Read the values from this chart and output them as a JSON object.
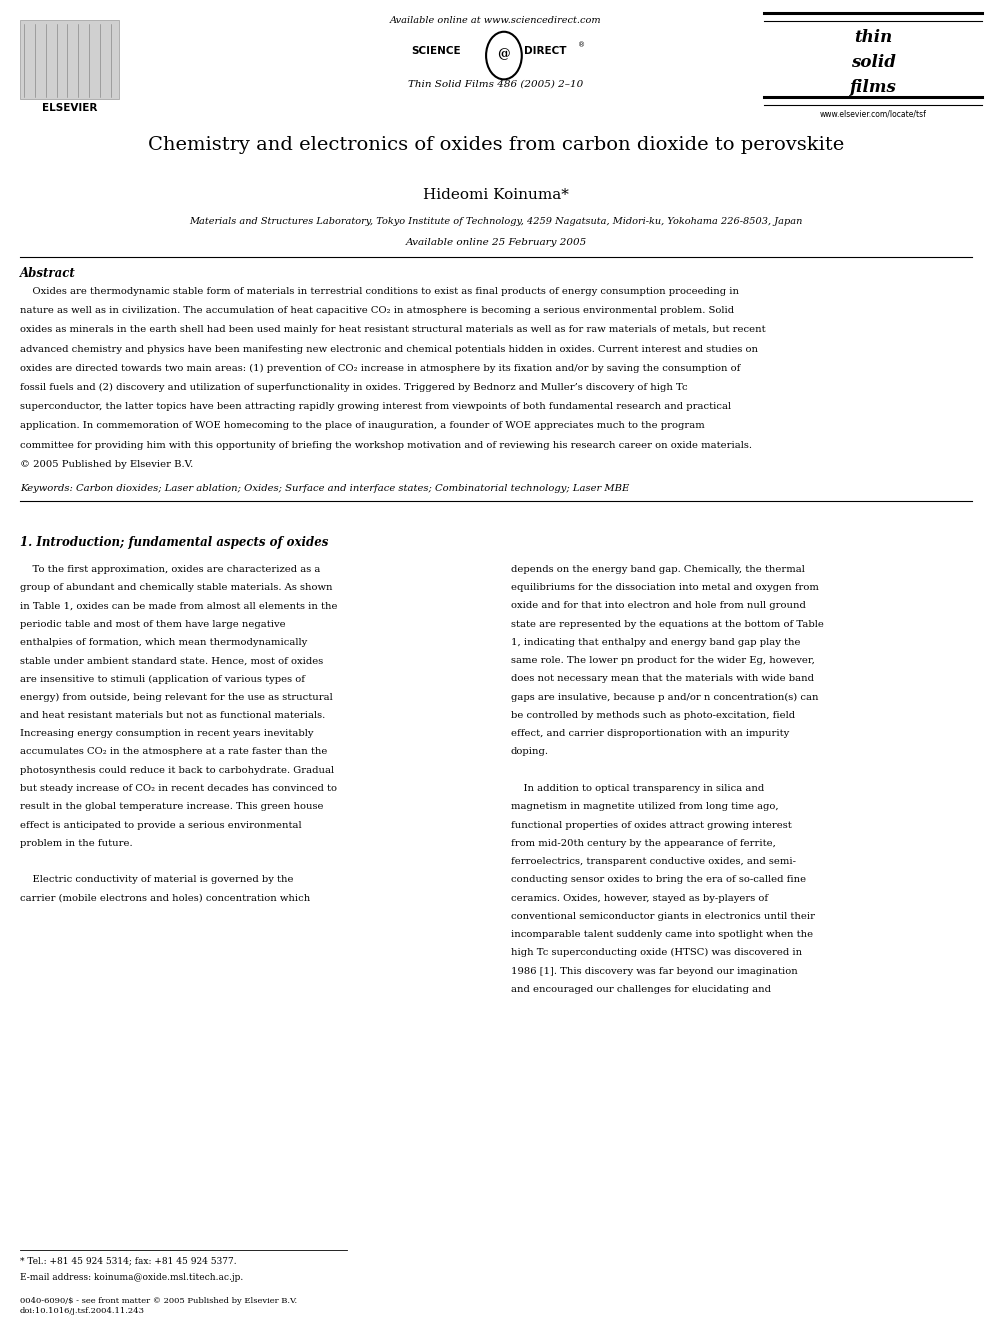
{
  "bg_color": "#ffffff",
  "title": "Chemistry and electronics of oxides from carbon dioxide to perovskite",
  "author": "Hideomi Koinuma*",
  "affiliation": "Materials and Structures Laboratory, Tokyo Institute of Technology, 4259 Nagatsuta, Midori-ku, Yokohama 226-8503, Japan",
  "available_online_header": "Available online at www.sciencedirect.com",
  "journal_info": "Thin Solid Films 486 (2005) 2–10",
  "available_online_date": "Available online 25 February 2005",
  "website": "www.elsevier.com/locate/tsf",
  "abstract_title": "Abstract",
  "keywords_label": "Keywords:",
  "keywords_text": "Carbon dioxides; Laser ablation; Oxides; Surface and interface states; Combinatorial technology; Laser MBE",
  "section1_title": "1. Introduction; fundamental aspects of oxides",
  "footnote_star": "* Tel.: +81 45 924 5314; fax: +81 45 924 5377.",
  "footnote_email": "E-mail address: koinuma@oxide.msl.titech.ac.jp.",
  "footer_left": "0040-6090/$ - see front matter © 2005 Published by Elsevier B.V.",
  "footer_doi": "doi:10.1016/j.tsf.2004.11.243",
  "elsevier_text": "ELSEVIER",
  "abstract_lines": [
    "    Oxides are thermodynamic stable form of materials in terrestrial conditions to exist as final products of energy consumption proceeding in",
    "nature as well as in civilization. The accumulation of heat capacitive CO₂ in atmosphere is becoming a serious environmental problem. Solid",
    "oxides as minerals in the earth shell had been used mainly for heat resistant structural materials as well as for raw materials of metals, but recent",
    "advanced chemistry and physics have been manifesting new electronic and chemical potentials hidden in oxides. Current interest and studies on",
    "oxides are directed towards two main areas: (1) prevention of CO₂ increase in atmosphere by its fixation and/or by saving the consumption of",
    "fossil fuels and (2) discovery and utilization of superfunctionality in oxides. Triggered by Bednorz and Muller’s discovery of high Tc",
    "superconductor, the latter topics have been attracting rapidly growing interest from viewpoints of both fundamental research and practical",
    "application. In commemoration of WOE homecoming to the place of inauguration, a founder of WOE appreciates much to the program",
    "committee for providing him with this opportunity of briefing the workshop motivation and of reviewing his research career on oxide materials.",
    "© 2005 Published by Elsevier B.V."
  ],
  "col1_lines": [
    "    To the first approximation, oxides are characterized as a",
    "group of abundant and chemically stable materials. As shown",
    "in Table 1, oxides can be made from almost all elements in the",
    "periodic table and most of them have large negative",
    "enthalpies of formation, which mean thermodynamically",
    "stable under ambient standard state. Hence, most of oxides",
    "are insensitive to stimuli (application of various types of",
    "energy) from outside, being relevant for the use as structural",
    "and heat resistant materials but not as functional materials.",
    "Increasing energy consumption in recent years inevitably",
    "accumulates CO₂ in the atmosphere at a rate faster than the",
    "photosynthesis could reduce it back to carbohydrate. Gradual",
    "but steady increase of CO₂ in recent decades has convinced to",
    "result in the global temperature increase. This green house",
    "effect is anticipated to provide a serious environmental",
    "problem in the future.",
    "",
    "    Electric conductivity of material is governed by the",
    "carrier (mobile electrons and holes) concentration which"
  ],
  "col2_lines": [
    "depends on the energy band gap. Chemically, the thermal",
    "equilibriums for the dissociation into metal and oxygen from",
    "oxide and for that into electron and hole from null ground",
    "state are represented by the equations at the bottom of Table",
    "1, indicating that enthalpy and energy band gap play the",
    "same role. The lower pn product for the wider Eg, however,",
    "does not necessary mean that the materials with wide band",
    "gaps are insulative, because p and/or n concentration(s) can",
    "be controlled by methods such as photo-excitation, field",
    "effect, and carrier disproportionation with an impurity",
    "doping.",
    "",
    "    In addition to optical transparency in silica and",
    "magnetism in magnetite utilized from long time ago,",
    "functional properties of oxides attract growing interest",
    "from mid-20th century by the appearance of ferrite,",
    "ferroelectrics, transparent conductive oxides, and semi-",
    "conducting sensor oxides to bring the era of so-called fine",
    "ceramics. Oxides, however, stayed as by-players of",
    "conventional semiconductor giants in electronics until their",
    "incomparable talent suddenly came into spotlight when the",
    "high Tc superconducting oxide (HTSC) was discovered in",
    "1986 [1]. This discovery was far beyond our imagination",
    "and encouraged our challenges for elucidating and"
  ]
}
